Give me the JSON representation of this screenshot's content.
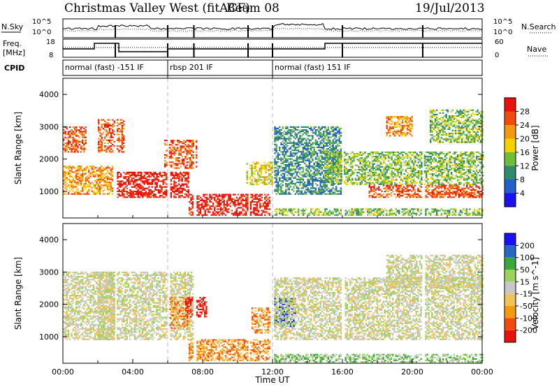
{
  "header": {
    "station": "Christmas Valley West (fitACF)",
    "beam": "Beam 08",
    "date": "19/Jul/2013"
  },
  "noise_panel": {
    "left_label": "N.Sky",
    "right_label": "N.Search",
    "left_ticks": [
      "10^5",
      "10^0"
    ],
    "right_ticks": [
      "10^5",
      "10^0"
    ]
  },
  "freq_panel": {
    "left_label_top": "Freq.",
    "left_label_bottom": "[MHz]",
    "right_label": "Nave",
    "left_ticks": [
      "18",
      "8"
    ],
    "right_ticks": [
      "60",
      "0"
    ]
  },
  "cpid_panel": {
    "label": "CPID",
    "segments": [
      {
        "label": "normal (fast) -151 IF",
        "start_hour": 0,
        "end_hour": 6
      },
      {
        "label": "rbsp 201 IF",
        "start_hour": 6,
        "end_hour": 12
      },
      {
        "label": "normal (fast) 151 IF",
        "start_hour": 12,
        "end_hour": 24
      }
    ]
  },
  "chart_data": [
    {
      "type": "heatmap",
      "title": "",
      "quantity": "Power",
      "colorbar_label": "Power [dB]",
      "colorbar_ticks": [
        "4",
        "8",
        "12",
        "16",
        "20",
        "24",
        "28"
      ],
      "colorbar_colors": [
        "#1a10f0",
        "#245ec8",
        "#2f8a6e",
        "#6dbf3a",
        "#f4d200",
        "#f59a10",
        "#f24a0f",
        "#e8120d"
      ],
      "xlabel": "",
      "ylabel": "Slant Range [km]",
      "yticks": [
        "1000",
        "2000",
        "3000",
        "4000"
      ],
      "ylim": [
        180,
        4500
      ],
      "xlim_hours": [
        0,
        24
      ],
      "data_gap_hours": [
        3,
        6,
        7.5,
        10.6,
        12,
        16,
        20.6
      ],
      "scatter_regions": [
        {
          "t_start": 0.0,
          "t_end": 1.3,
          "r_start": 2200,
          "r_end": 3000,
          "level": 6
        },
        {
          "t_start": 0.0,
          "t_end": 2.8,
          "r_start": 900,
          "r_end": 1800,
          "level": 5
        },
        {
          "t_start": 2.0,
          "t_end": 3.5,
          "r_start": 2200,
          "r_end": 3200,
          "level": 6
        },
        {
          "t_start": 3.0,
          "t_end": 7.2,
          "r_start": 800,
          "r_end": 1600,
          "level": 7
        },
        {
          "t_start": 5.8,
          "t_end": 7.6,
          "r_start": 1700,
          "r_end": 2600,
          "level": 6
        },
        {
          "t_start": 7.2,
          "t_end": 11.8,
          "r_start": 250,
          "r_end": 900,
          "level": 7
        },
        {
          "t_start": 10.5,
          "t_end": 12.0,
          "r_start": 1200,
          "r_end": 1900,
          "level": 4
        },
        {
          "t_start": 12.0,
          "t_end": 16.0,
          "r_start": 900,
          "r_end": 3000,
          "level": 2
        },
        {
          "t_start": 15.0,
          "t_end": 24.0,
          "r_start": 1200,
          "r_end": 2200,
          "level": 3
        },
        {
          "t_start": 17.5,
          "t_end": 24.0,
          "r_start": 800,
          "r_end": 1200,
          "level": 6
        },
        {
          "t_start": 18.5,
          "t_end": 20.0,
          "r_start": 2700,
          "r_end": 3300,
          "level": 5
        },
        {
          "t_start": 21.0,
          "t_end": 24.0,
          "r_start": 2500,
          "r_end": 3500,
          "level": 3
        },
        {
          "t_start": 12.0,
          "t_end": 24.0,
          "r_start": 250,
          "r_end": 450,
          "level": 3
        }
      ]
    },
    {
      "type": "heatmap",
      "title": "",
      "quantity": "Velocity",
      "colorbar_label": "Velocity [m s^-1]",
      "colorbar_ticks": [
        "-200",
        "-100",
        "-50",
        "-15",
        "15",
        "50",
        "100",
        "200"
      ],
      "colorbar_colors": [
        "#e8120d",
        "#f24a0f",
        "#f59a10",
        "#f2c25a",
        "#c8c8c8",
        "#9bd35c",
        "#3aa83c",
        "#2a67c4",
        "#1a10f0"
      ],
      "xlabel": "Time UT",
      "ylabel": "Slant Range [km]",
      "yticks": [
        "1000",
        "2000",
        "3000",
        "4000"
      ],
      "ylim": [
        180,
        4500
      ],
      "xticks": [
        "00:00",
        "04:00",
        "08:00",
        "12:00",
        "16:00",
        "20:00",
        "00:00"
      ],
      "xlim_hours": [
        0,
        24
      ],
      "data_gap_hours": [
        3,
        6,
        7.5,
        10.6,
        12,
        16,
        20.6
      ],
      "scatter_regions": [
        {
          "t_start": 0.0,
          "t_end": 3.0,
          "r_start": 900,
          "r_end": 3000,
          "level": 4
        },
        {
          "t_start": 2.0,
          "t_end": 7.5,
          "r_start": 900,
          "r_end": 3000,
          "level": 4
        },
        {
          "t_start": 6.0,
          "t_end": 7.2,
          "r_start": 1200,
          "r_end": 2200,
          "level": 2
        },
        {
          "t_start": 7.0,
          "t_end": 8.2,
          "r_start": 1600,
          "r_end": 2200,
          "level": 0
        },
        {
          "t_start": 7.2,
          "t_end": 11.8,
          "r_start": 250,
          "r_end": 900,
          "level": 2
        },
        {
          "t_start": 10.8,
          "t_end": 11.8,
          "r_start": 1100,
          "r_end": 1900,
          "level": 2
        },
        {
          "t_start": 12.0,
          "t_end": 13.3,
          "r_start": 1300,
          "r_end": 2200,
          "level": 7
        },
        {
          "t_start": 12.0,
          "t_end": 24.0,
          "r_start": 900,
          "r_end": 2800,
          "level": 4
        },
        {
          "t_start": 12.0,
          "t_end": 24.0,
          "r_start": 200,
          "r_end": 450,
          "level": 5
        },
        {
          "t_start": 18.5,
          "t_end": 24.0,
          "r_start": 2500,
          "r_end": 3500,
          "level": 4
        }
      ]
    }
  ]
}
